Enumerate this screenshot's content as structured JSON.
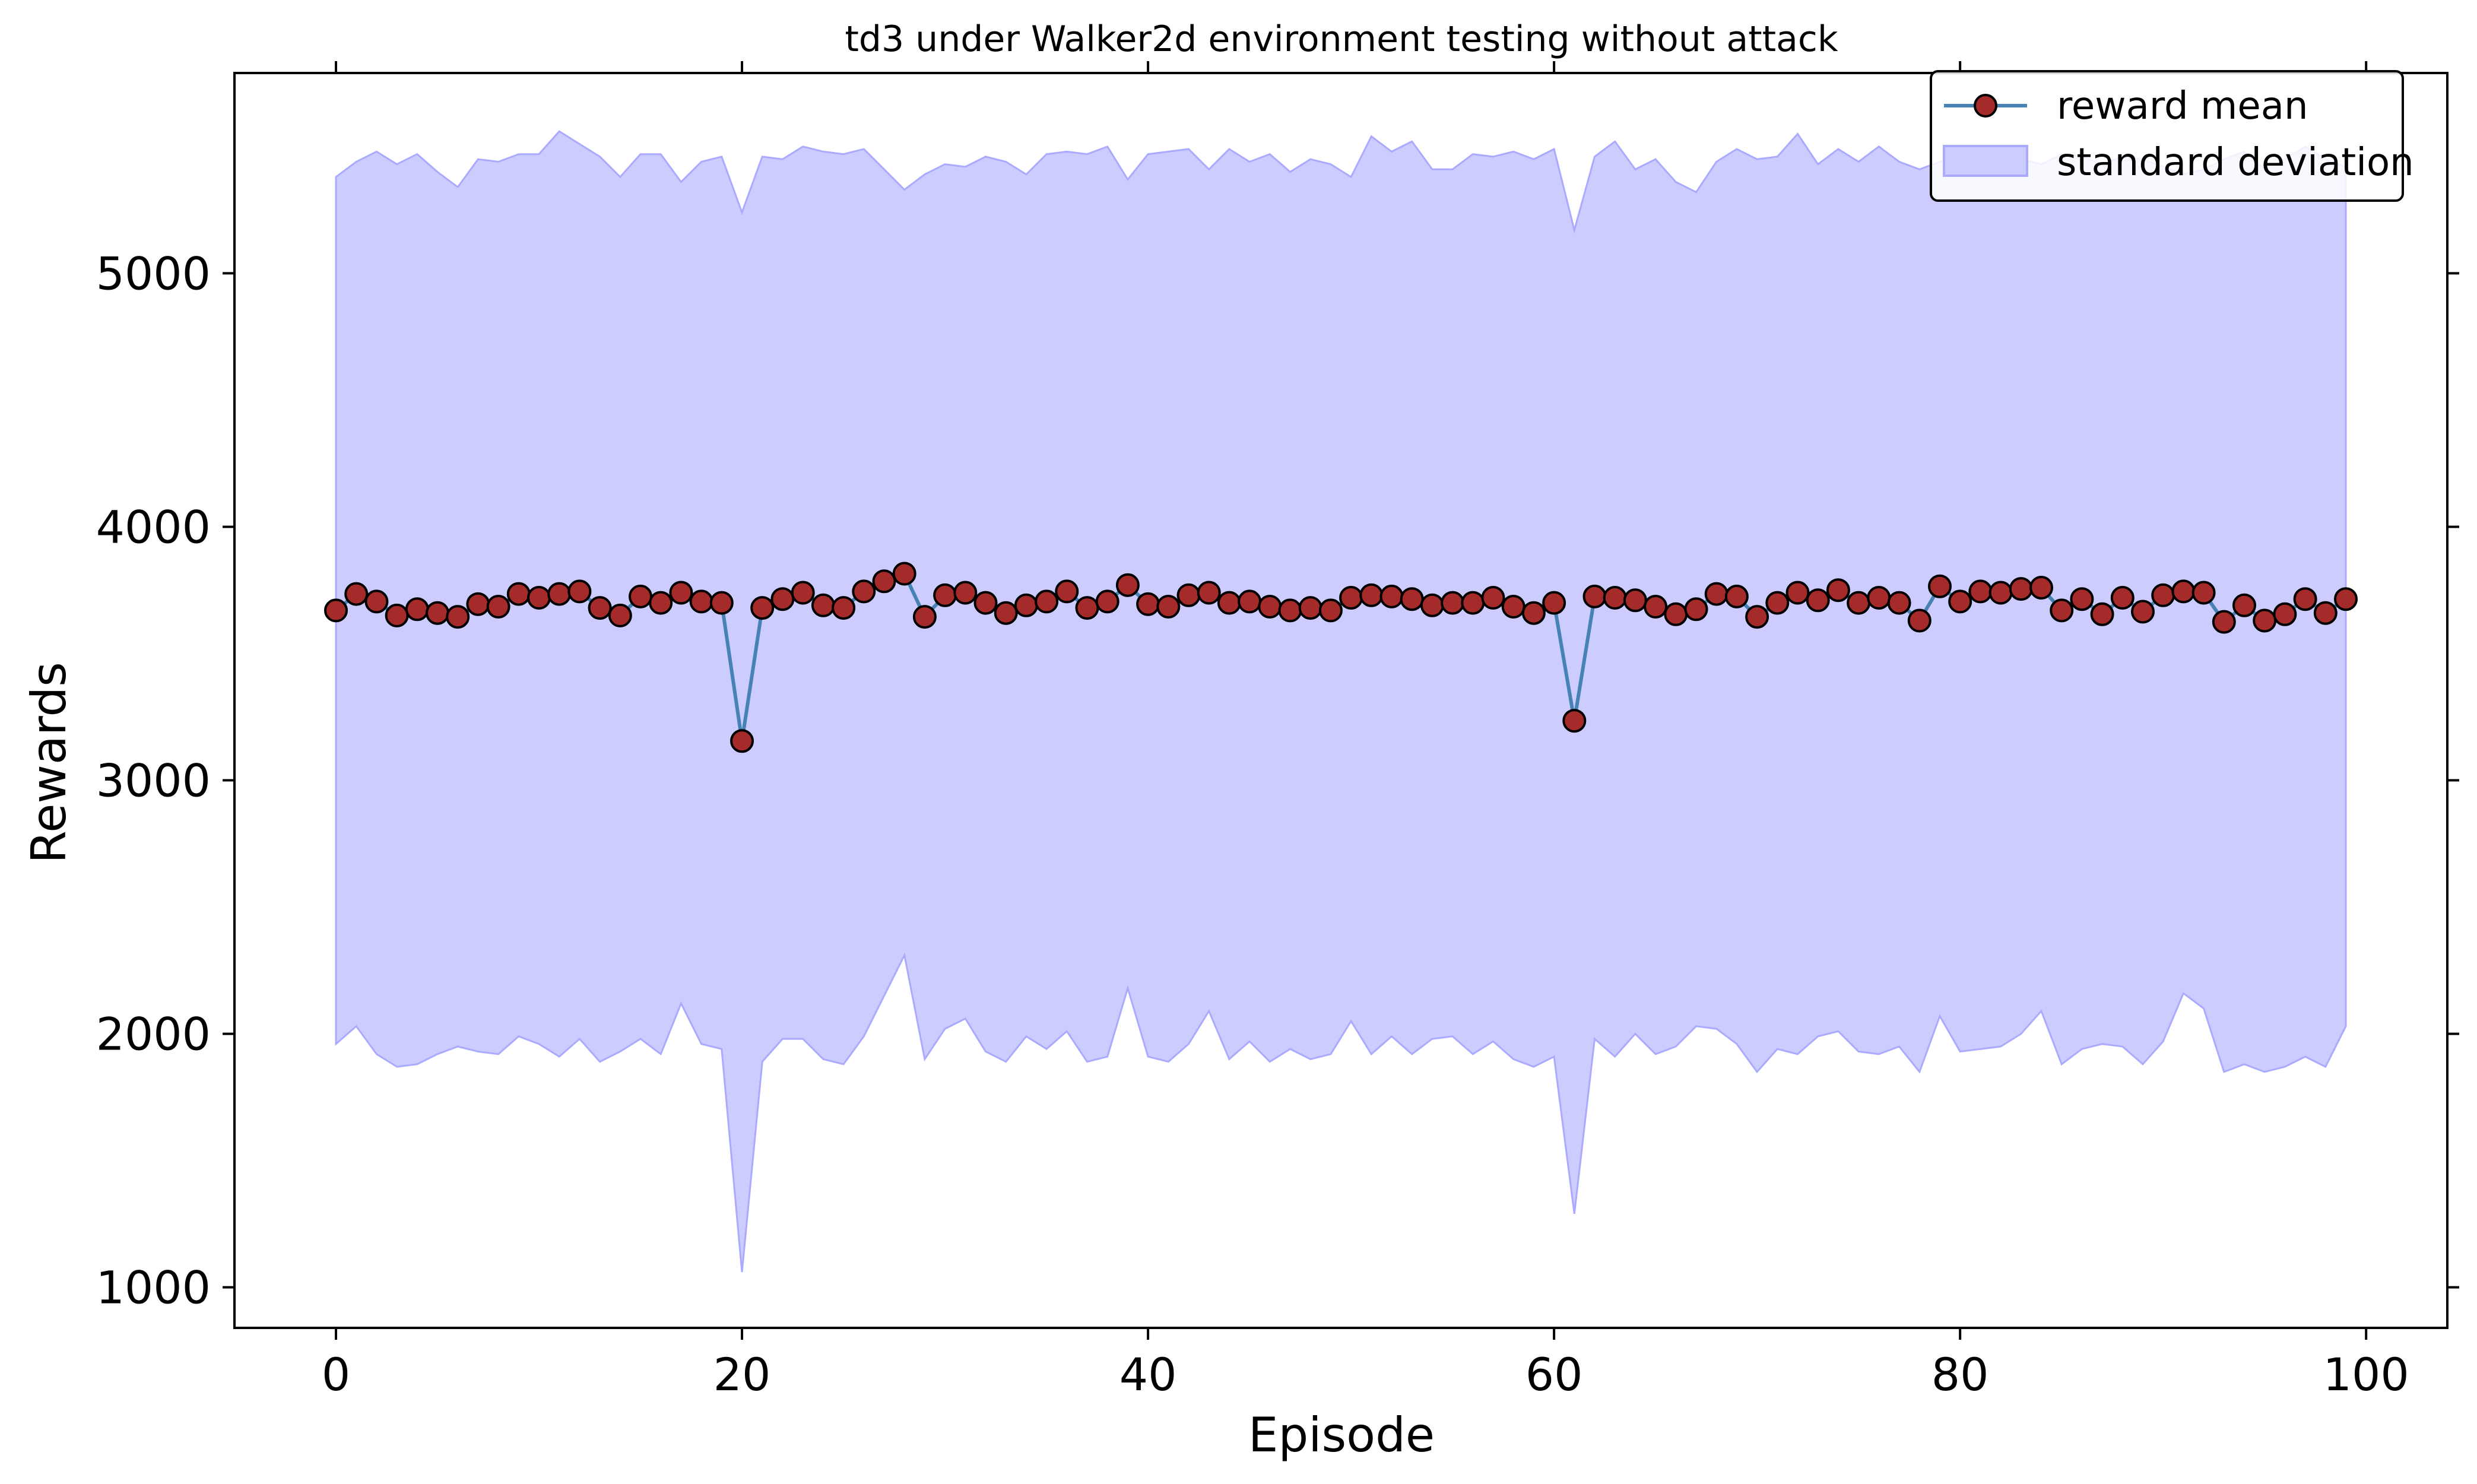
{
  "chart_data": {
    "type": "line",
    "title": "td3 under Walker2d environment testing without attack",
    "xlabel": "Episode",
    "ylabel": "Rewards",
    "xlim": [
      -5,
      104
    ],
    "ylim": [
      840,
      5790
    ],
    "xticks": [
      0,
      20,
      40,
      60,
      80,
      100
    ],
    "yticks": [
      1000,
      2000,
      3000,
      4000,
      5000
    ],
    "grid": false,
    "legend_position": "top-right",
    "colors": {
      "line": "#4682b4",
      "marker_fill": "#a52a2a",
      "marker_edge": "#000000",
      "band_fill": "#ccccff",
      "band_edge": "#aaaaff"
    },
    "x": [
      0,
      1,
      2,
      3,
      4,
      5,
      6,
      7,
      8,
      9,
      10,
      11,
      12,
      13,
      14,
      15,
      16,
      17,
      18,
      19,
      20,
      21,
      22,
      23,
      24,
      25,
      26,
      27,
      28,
      29,
      30,
      31,
      32,
      33,
      34,
      35,
      36,
      37,
      38,
      39,
      40,
      41,
      42,
      43,
      44,
      45,
      46,
      47,
      48,
      49,
      50,
      51,
      52,
      53,
      54,
      55,
      56,
      57,
      58,
      59,
      60,
      61,
      62,
      63,
      64,
      65,
      66,
      67,
      68,
      69,
      70,
      71,
      72,
      73,
      74,
      75,
      76,
      77,
      78,
      79,
      80,
      81,
      82,
      83,
      84,
      85,
      86,
      87,
      88,
      89,
      90,
      91,
      92,
      93,
      94,
      95,
      96,
      97,
      98,
      99
    ],
    "series": [
      {
        "name": "reward mean",
        "values": [
          3670,
          3735,
          3705,
          3650,
          3675,
          3660,
          3645,
          3695,
          3685,
          3735,
          3720,
          3735,
          3745,
          3680,
          3650,
          3725,
          3700,
          3740,
          3705,
          3700,
          3155,
          3680,
          3715,
          3740,
          3690,
          3680,
          3745,
          3785,
          3815,
          3645,
          3730,
          3740,
          3700,
          3660,
          3690,
          3705,
          3745,
          3680,
          3705,
          3770,
          3695,
          3685,
          3730,
          3740,
          3700,
          3705,
          3685,
          3670,
          3680,
          3670,
          3720,
          3730,
          3725,
          3715,
          3690,
          3700,
          3700,
          3720,
          3685,
          3660,
          3700,
          3235,
          3725,
          3720,
          3710,
          3685,
          3655,
          3675,
          3735,
          3725,
          3645,
          3700,
          3740,
          3710,
          3750,
          3700,
          3720,
          3700,
          3630,
          3765,
          3705,
          3745,
          3740,
          3755,
          3760,
          3670,
          3715,
          3655,
          3720,
          3665,
          3730,
          3745,
          3740,
          3625,
          3690,
          3630,
          3655,
          3715,
          3660,
          3715
        ]
      },
      {
        "name": "standard deviation",
        "upper": [
          5380,
          5440,
          5480,
          5430,
          5470,
          5400,
          5340,
          5450,
          5440,
          5470,
          5470,
          5560,
          5510,
          5460,
          5380,
          5470,
          5470,
          5360,
          5440,
          5460,
          5240,
          5460,
          5450,
          5500,
          5480,
          5470,
          5490,
          5410,
          5330,
          5390,
          5430,
          5420,
          5460,
          5440,
          5390,
          5470,
          5480,
          5470,
          5500,
          5370,
          5470,
          5480,
          5490,
          5410,
          5490,
          5440,
          5470,
          5400,
          5450,
          5430,
          5380,
          5540,
          5480,
          5520,
          5410,
          5410,
          5470,
          5460,
          5480,
          5450,
          5490,
          5170,
          5460,
          5520,
          5410,
          5450,
          5360,
          5320,
          5440,
          5490,
          5450,
          5460,
          5550,
          5430,
          5490,
          5440,
          5500,
          5440,
          5410,
          5440,
          5460,
          5500,
          5470,
          5450,
          5430,
          5470,
          5460,
          5430,
          5460,
          5450,
          5420,
          5390,
          5410,
          5450,
          5480,
          5410,
          5450,
          5500,
          5450,
          5420
        ],
        "lower": [
          1960,
          2030,
          1920,
          1870,
          1880,
          1920,
          1950,
          1930,
          1920,
          1990,
          1960,
          1910,
          1980,
          1890,
          1930,
          1980,
          1920,
          2120,
          1960,
          1940,
          1060,
          1890,
          1980,
          1980,
          1900,
          1880,
          1990,
          2150,
          2310,
          1900,
          2020,
          2060,
          1930,
          1890,
          1990,
          1940,
          2010,
          1890,
          1910,
          2180,
          1910,
          1890,
          1960,
          2090,
          1900,
          1970,
          1890,
          1940,
          1900,
          1920,
          2050,
          1920,
          1990,
          1920,
          1980,
          1990,
          1920,
          1970,
          1900,
          1870,
          1910,
          1290,
          1980,
          1910,
          2000,
          1920,
          1950,
          2030,
          2020,
          1960,
          1850,
          1940,
          1920,
          1990,
          2010,
          1930,
          1920,
          1950,
          1850,
          2070,
          1930,
          1940,
          1950,
          2000,
          2090,
          1880,
          1940,
          1960,
          1950,
          1880,
          1970,
          2160,
          2100,
          1850,
          1880,
          1850,
          1870,
          1910,
          1870,
          2030
        ]
      }
    ]
  }
}
